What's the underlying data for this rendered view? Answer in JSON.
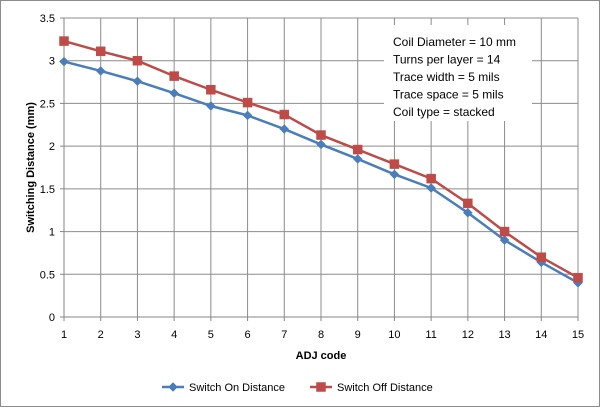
{
  "chart_data": {
    "type": "line",
    "title": "",
    "xlabel": "ADJ code",
    "ylabel": "Switching Distance (mm)",
    "x": [
      1,
      2,
      3,
      4,
      5,
      6,
      7,
      8,
      9,
      10,
      11,
      12,
      13,
      14,
      15
    ],
    "x_tick_labels": [
      "1",
      "2",
      "3",
      "4",
      "5",
      "6",
      "7",
      "8",
      "9",
      "10",
      "11",
      "12",
      "13",
      "14",
      "15"
    ],
    "xlim": [
      1,
      15
    ],
    "ylim": [
      0,
      3.5
    ],
    "y_ticks": [
      0,
      0.5,
      1,
      1.5,
      2,
      2.5,
      3,
      3.5
    ],
    "y_tick_labels": [
      "0",
      "0.5",
      "1",
      "1.5",
      "2",
      "2.5",
      "3",
      "3.5"
    ],
    "grid": true,
    "legend_position": "bottom",
    "series": [
      {
        "name": "Switch On Distance",
        "color": "#4a7ebb",
        "marker": "diamond",
        "values": [
          2.99,
          2.88,
          2.76,
          2.62,
          2.47,
          2.36,
          2.2,
          2.02,
          1.85,
          1.67,
          1.51,
          1.22,
          0.9,
          0.64,
          0.4
        ]
      },
      {
        "name": "Switch Off Distance",
        "color": "#be4b48",
        "marker": "square",
        "values": [
          3.23,
          3.11,
          3.0,
          2.82,
          2.66,
          2.51,
          2.37,
          2.13,
          1.96,
          1.79,
          1.62,
          1.33,
          1.0,
          0.7,
          0.46
        ]
      }
    ],
    "annotations": [
      "Coil Diameter = 10 mm",
      "Turns per layer = 14",
      "Trace width = 5 mils",
      "Trace space = 5 mils",
      "Coil type = stacked"
    ]
  }
}
